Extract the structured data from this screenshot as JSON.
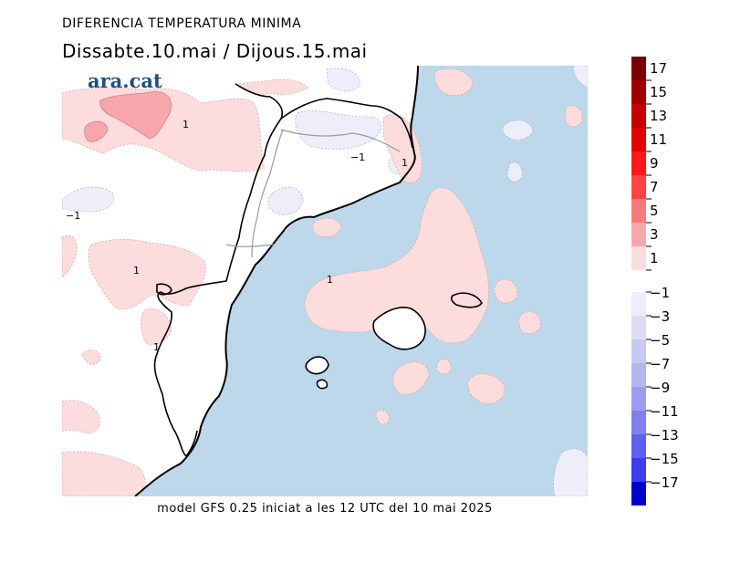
{
  "header": {
    "title": "DIFERENCIA TEMPERATURA MINIMA",
    "subtitle": "Dissabte.10.mai  /  Dijous.15.mai"
  },
  "brand": {
    "logo_text": "ara.cat"
  },
  "footer": {
    "caption": "model GFS 0.25 iniciat a les 12 UTC del 10 mai 2025"
  },
  "map": {
    "contour_labels": [
      "1",
      "1",
      "1",
      "1",
      "1",
      "−1",
      "−1"
    ],
    "colors": {
      "sea": "#bcd8ea",
      "land": "#ffffff",
      "warm_1_3": "#fcdcdc",
      "warm_3_5": "#f7a7ab",
      "cool_m1_m3": "#eeeefb",
      "coast": "#000000",
      "border": "#9a9a9a"
    }
  },
  "legend": {
    "labels": [
      "17",
      "15",
      "13",
      "11",
      "9",
      "7",
      "5",
      "3",
      "1",
      "−1",
      "−3",
      "−5",
      "−7",
      "−9",
      "−11",
      "−13",
      "−15",
      "−17"
    ],
    "warm_colors": [
      "#7a0000",
      "#a10000",
      "#c40000",
      "#e00000",
      "#ff1a1a",
      "#ff4444",
      "#f77a7a",
      "#f7a7ab",
      "#fcdcdc"
    ],
    "cool_colors": [
      "#eeeefb",
      "#dcdcf7",
      "#c8c8f3",
      "#b4b4ef",
      "#9c9cee",
      "#7f7fee",
      "#6060ee",
      "#3d3de9",
      "#0000cc"
    ]
  }
}
